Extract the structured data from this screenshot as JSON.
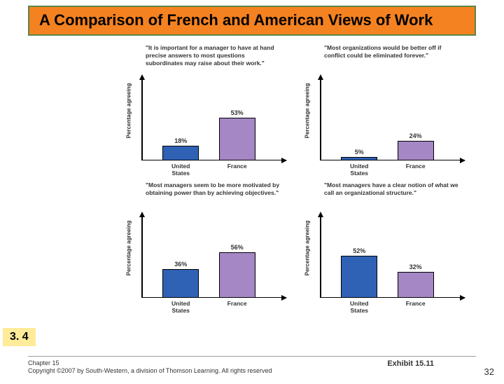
{
  "title": "A Comparison of French and American Views of Work",
  "title_bg": "#f58220",
  "title_border": "#5a884a",
  "title_color": "#000000",
  "section_tag": "3. 4",
  "tag_bg": "#ffeb99",
  "exhibit_label": "Exhibit 15.11",
  "chapter": "Chapter 15",
  "copyright": "Copyright ©2007 by South-Western, a division of Thomson Learning.  All rights reserved",
  "slide_number": "32",
  "chart_spec": {
    "ylabel": "Percentage agreeing",
    "ymax": 100,
    "bar_width_pct": 26,
    "bar_positions_pct": [
      28,
      68
    ],
    "categories": [
      "United\nStates",
      "France"
    ],
    "colors": {
      "us": "#2f62b5",
      "fr": "#a487c4",
      "axis": "#000000"
    },
    "label_fontsize": 8,
    "value_fontsize": 9,
    "caption_fontsize": 8.5
  },
  "panels": [
    {
      "caption": "\"It is important for a manager to have at hand precise answers to most questions subordinates may raise about their work.\"",
      "values": [
        18,
        53
      ]
    },
    {
      "caption": "\"Most organizations would be better off if conflict could be eliminated forever.\"",
      "values": [
        5,
        24
      ]
    },
    {
      "caption": "\"Most managers seem to be more motivated by obtaining power than by achieving objectives.\"",
      "values": [
        36,
        56
      ]
    },
    {
      "caption": "\"Most managers have a clear notion of what we call an organizational structure.\"",
      "values": [
        52,
        32
      ]
    }
  ]
}
